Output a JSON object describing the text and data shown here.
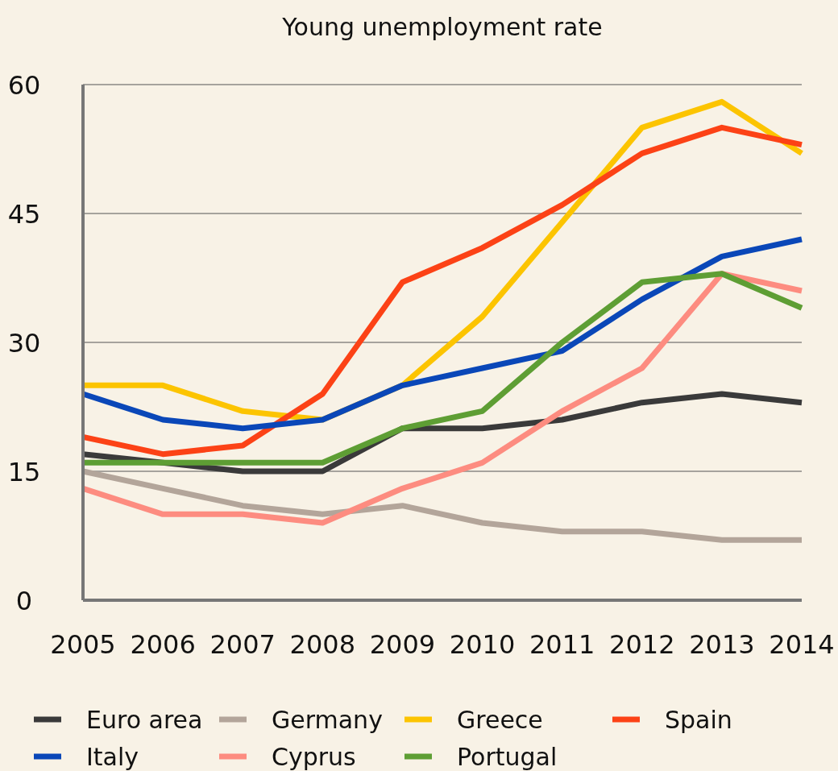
{
  "chart_data": {
    "type": "line",
    "title": "Young unemployment rate",
    "categories": [
      "2005",
      "2006",
      "2007",
      "2008",
      "2009",
      "2010",
      "2011",
      "2012",
      "2013",
      "2014"
    ],
    "series": [
      {
        "name": "Euro area",
        "color": "#3a3a3a",
        "values": [
          17,
          16,
          15,
          15,
          20,
          20,
          21,
          23,
          24,
          23
        ]
      },
      {
        "name": "Germany",
        "color": "#b3a59a",
        "values": [
          15,
          13,
          11,
          10,
          11,
          9,
          8,
          8,
          7,
          7
        ]
      },
      {
        "name": "Greece",
        "color": "#fcc400",
        "values": [
          25,
          25,
          22,
          21,
          25,
          33,
          44,
          55,
          58,
          52
        ]
      },
      {
        "name": "Spain",
        "color": "#fc4216",
        "values": [
          19,
          17,
          18,
          24,
          37,
          41,
          46,
          52,
          55,
          53
        ]
      },
      {
        "name": "Italy",
        "color": "#0a47b8",
        "values": [
          24,
          21,
          20,
          21,
          25,
          27,
          29,
          35,
          40,
          42
        ]
      },
      {
        "name": "Cyprus",
        "color": "#fd8c80",
        "values": [
          13,
          10,
          10,
          9,
          13,
          16,
          22,
          27,
          38,
          36
        ]
      },
      {
        "name": "Portugal",
        "color": "#5e9e34",
        "values": [
          16,
          16,
          16,
          16,
          20,
          22,
          30,
          37,
          38,
          34
        ]
      }
    ],
    "ylim": [
      0,
      60
    ],
    "yticks": [
      0,
      15,
      30,
      45,
      60
    ],
    "grid": "y",
    "legend": "bottom",
    "marker": "none",
    "line_style": "solid"
  }
}
